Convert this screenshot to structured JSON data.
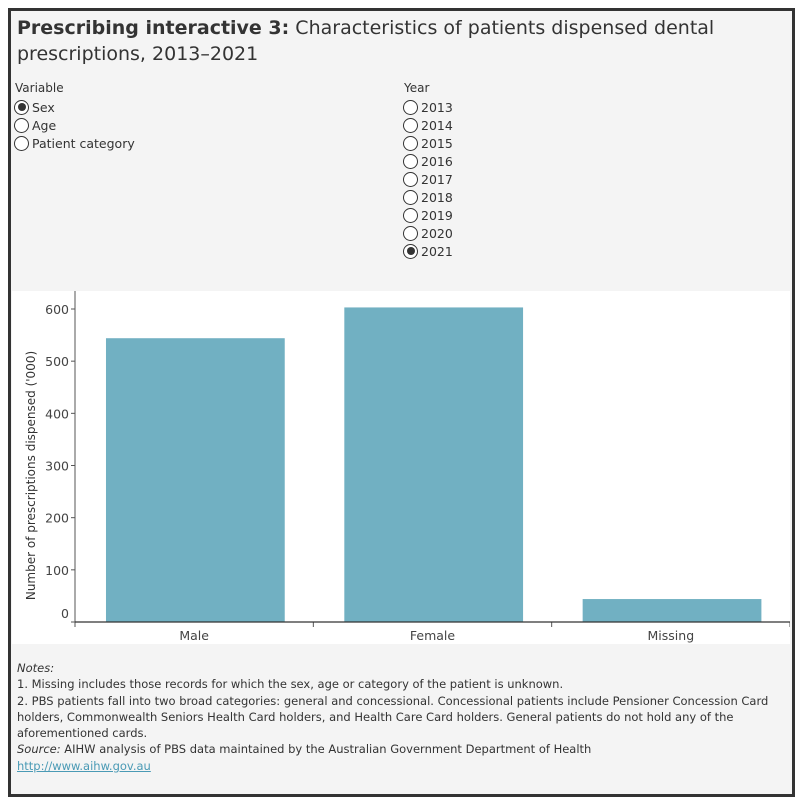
{
  "header": {
    "title_bold": "Prescribing interactive 3:",
    "title_rest": " Characteristics of patients dispensed dental prescriptions, 2013–2021"
  },
  "variable_filter": {
    "label": "Variable",
    "options": [
      "Sex",
      "Age",
      "Patient category"
    ],
    "selected": "Sex"
  },
  "year_filter": {
    "label": "Year",
    "options": [
      "2013",
      "2014",
      "2015",
      "2016",
      "2017",
      "2018",
      "2019",
      "2020",
      "2021"
    ],
    "selected": "2021"
  },
  "chart_data": {
    "type": "bar",
    "categories": [
      "Male",
      "Female",
      "Missing"
    ],
    "values": [
      544,
      603,
      44
    ],
    "title": "",
    "xlabel": "",
    "ylabel": "Number of prescriptions dispensed ('000)",
    "ylim": [
      0,
      600
    ],
    "yticks": [
      0,
      100,
      200,
      300,
      400,
      500,
      600
    ],
    "grid": false,
    "bar_color": "#71b0c2"
  },
  "notes": {
    "heading": "Notes:",
    "items": [
      "1. Missing includes those records for which the sex, age or category of the patient is unknown.",
      "2. PBS patients fall into two broad categories: general and concessional. Concessional patients include Pensioner Concession Card holders, Commonwealth Seniors Health Card holders, and Health Care Card holders. General patients do not hold any of the aforementioned cards."
    ],
    "source_label": "Source:",
    "source_text": " AIHW analysis of PBS data maintained by the Australian Government Department of Health",
    "link": "http://www.aihw.gov.au"
  }
}
